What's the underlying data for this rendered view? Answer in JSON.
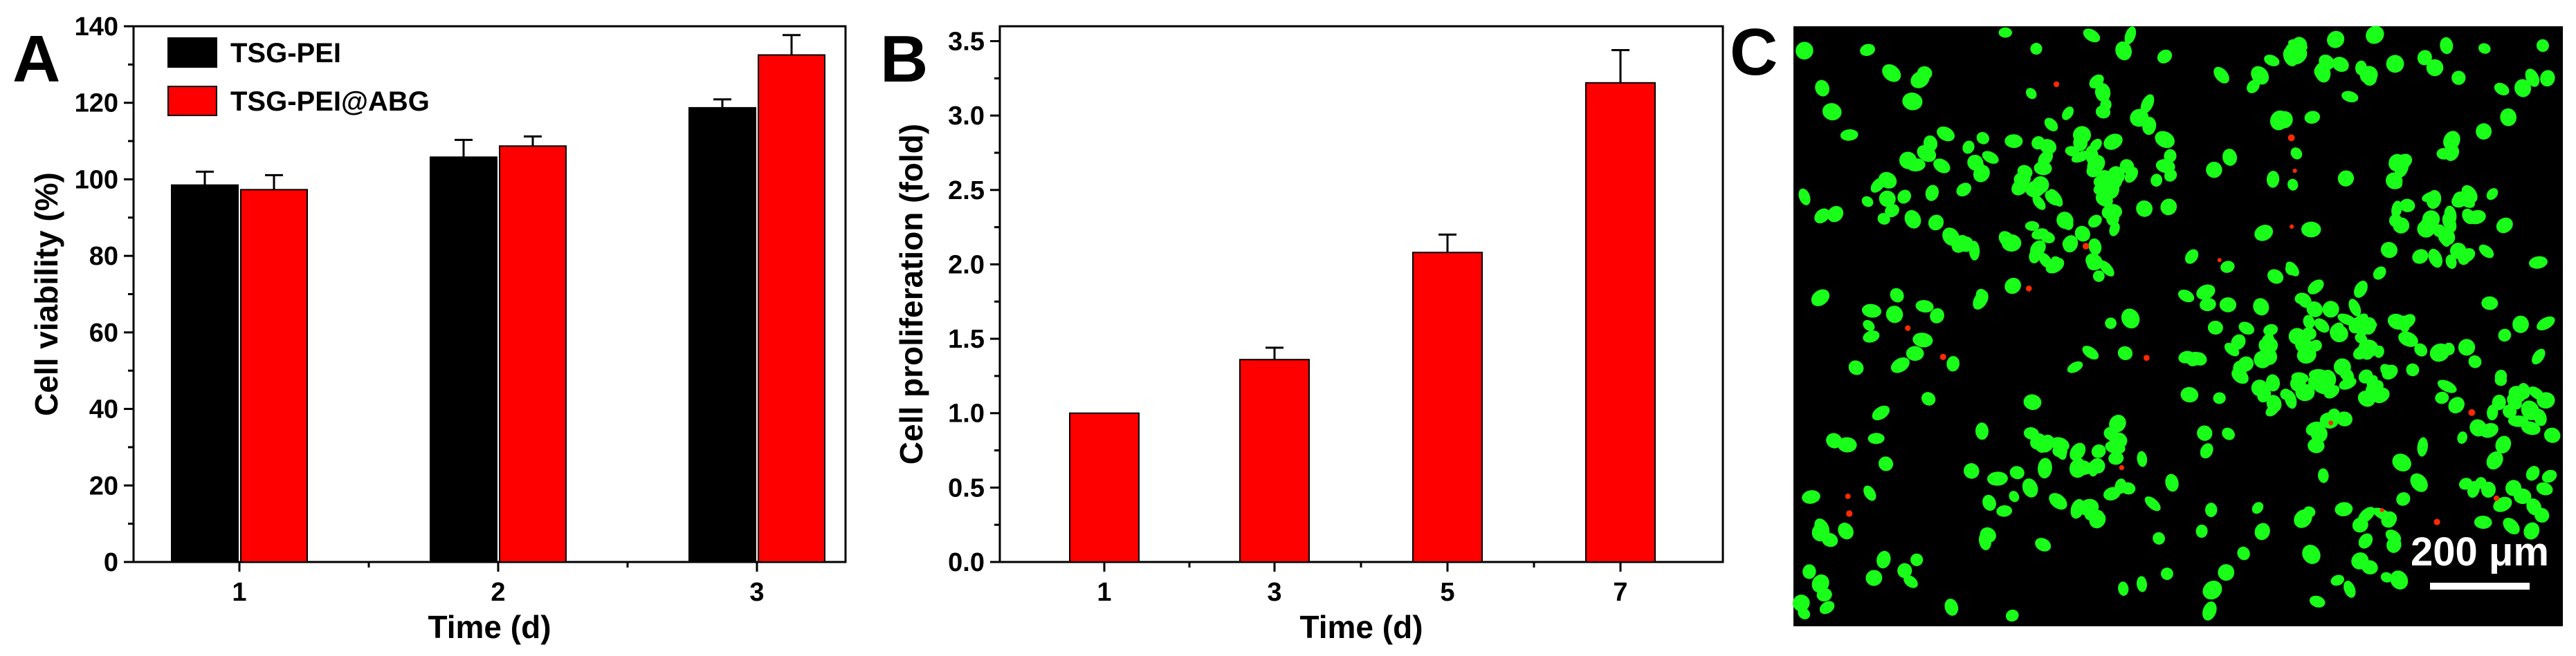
{
  "panels": {
    "A": {
      "letter": "A"
    },
    "B": {
      "letter": "B"
    },
    "C": {
      "letter": "C",
      "scale_bar_label": "200 μm"
    }
  },
  "colors": {
    "TSG-PEI": "#000000",
    "TSG-PEI@ABG": "#ff0000",
    "proliferation_bar": "#ff0000",
    "micrograph_background": "#000000",
    "live_cells": "#19ff19",
    "dead_cells": "#ff2a00",
    "scale_bar": "#ffffff"
  },
  "chart_data": [
    {
      "panel": "A",
      "type": "bar",
      "categories": [
        "1",
        "2",
        "3"
      ],
      "series": [
        {
          "name": "TSG-PEI",
          "values": [
            98.5,
            105.8,
            118.7
          ],
          "errors": [
            3.5,
            4.5,
            2.2
          ]
        },
        {
          "name": "TSG-PEI@ABG",
          "values": [
            97.3,
            108.7,
            132.5
          ],
          "errors": [
            3.8,
            2.5,
            5.2
          ]
        }
      ],
      "xlabel": "Time (d)",
      "ylabel": "Cell viability (%)",
      "ylim": [
        0,
        140
      ],
      "yticks": [
        0,
        20,
        40,
        60,
        80,
        100,
        120,
        140
      ],
      "grid": false,
      "legend": "top-left"
    },
    {
      "panel": "B",
      "type": "bar",
      "categories": [
        "1",
        "3",
        "5",
        "7"
      ],
      "series": [
        {
          "values": [
            1.0,
            1.36,
            2.08,
            3.22
          ],
          "errors": [
            0.0,
            0.08,
            0.12,
            0.22
          ]
        }
      ],
      "xlabel": "Time (d)",
      "ylabel": "Cell proliferation (fold)",
      "ylim": [
        0,
        3.6
      ],
      "yticks": [
        "0.0",
        "0.5",
        "1.0",
        "1.5",
        "2.0",
        "2.5",
        "3.0",
        "3.5"
      ],
      "grid": false
    }
  ]
}
